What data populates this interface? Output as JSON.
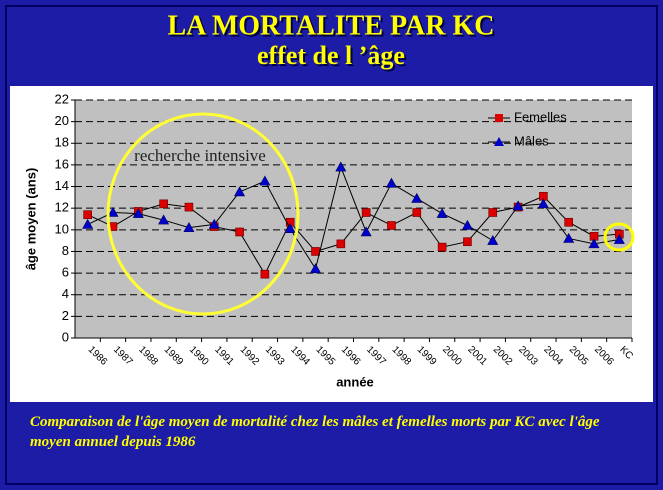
{
  "chart_data": {
    "type": "line",
    "title": "LA MORTALITE PAR KC",
    "subtitle": "effet de l ’âge",
    "xlabel": "année",
    "ylabel": "âge moyen (ans)",
    "annotation": "recherche intensive",
    "categories": [
      "1986",
      "1987",
      "1988",
      "1989",
      "1990",
      "1991",
      "1992",
      "1993",
      "1994",
      "1995",
      "1996",
      "1997",
      "1998",
      "1999",
      "2000",
      "2001",
      "2002",
      "2003",
      "2004",
      "2005",
      "2006",
      "KC"
    ],
    "series": [
      {
        "name": "Femelles",
        "color": "#dd0000",
        "marker": "square",
        "values": [
          11.4,
          10.3,
          11.7,
          12.4,
          12.1,
          10.3,
          9.8,
          5.9,
          10.7,
          8.0,
          8.7,
          11.6,
          10.4,
          11.6,
          8.4,
          8.9,
          11.6,
          12.1,
          13.1,
          10.7,
          9.4,
          9.6
        ]
      },
      {
        "name": "Mâles",
        "color": "#0000cc",
        "marker": "triangle",
        "values": [
          10.5,
          11.6,
          11.5,
          10.9,
          10.2,
          10.5,
          13.5,
          14.5,
          10.1,
          6.4,
          15.8,
          9.8,
          14.3,
          12.9,
          11.5,
          10.4,
          9.0,
          12.2,
          12.4,
          9.2,
          8.7,
          9.1
        ]
      }
    ],
    "ylim": [
      0,
      22
    ],
    "yticks": [
      0,
      2,
      4,
      6,
      8,
      10,
      12,
      14,
      16,
      18,
      20,
      22
    ],
    "grid": true,
    "legend": "upper right"
  },
  "caption": "Comparaison de l'âge moyen de mortalité chez les mâles et femelles morts par KC avec l'âge moyen annuel depuis 1986"
}
